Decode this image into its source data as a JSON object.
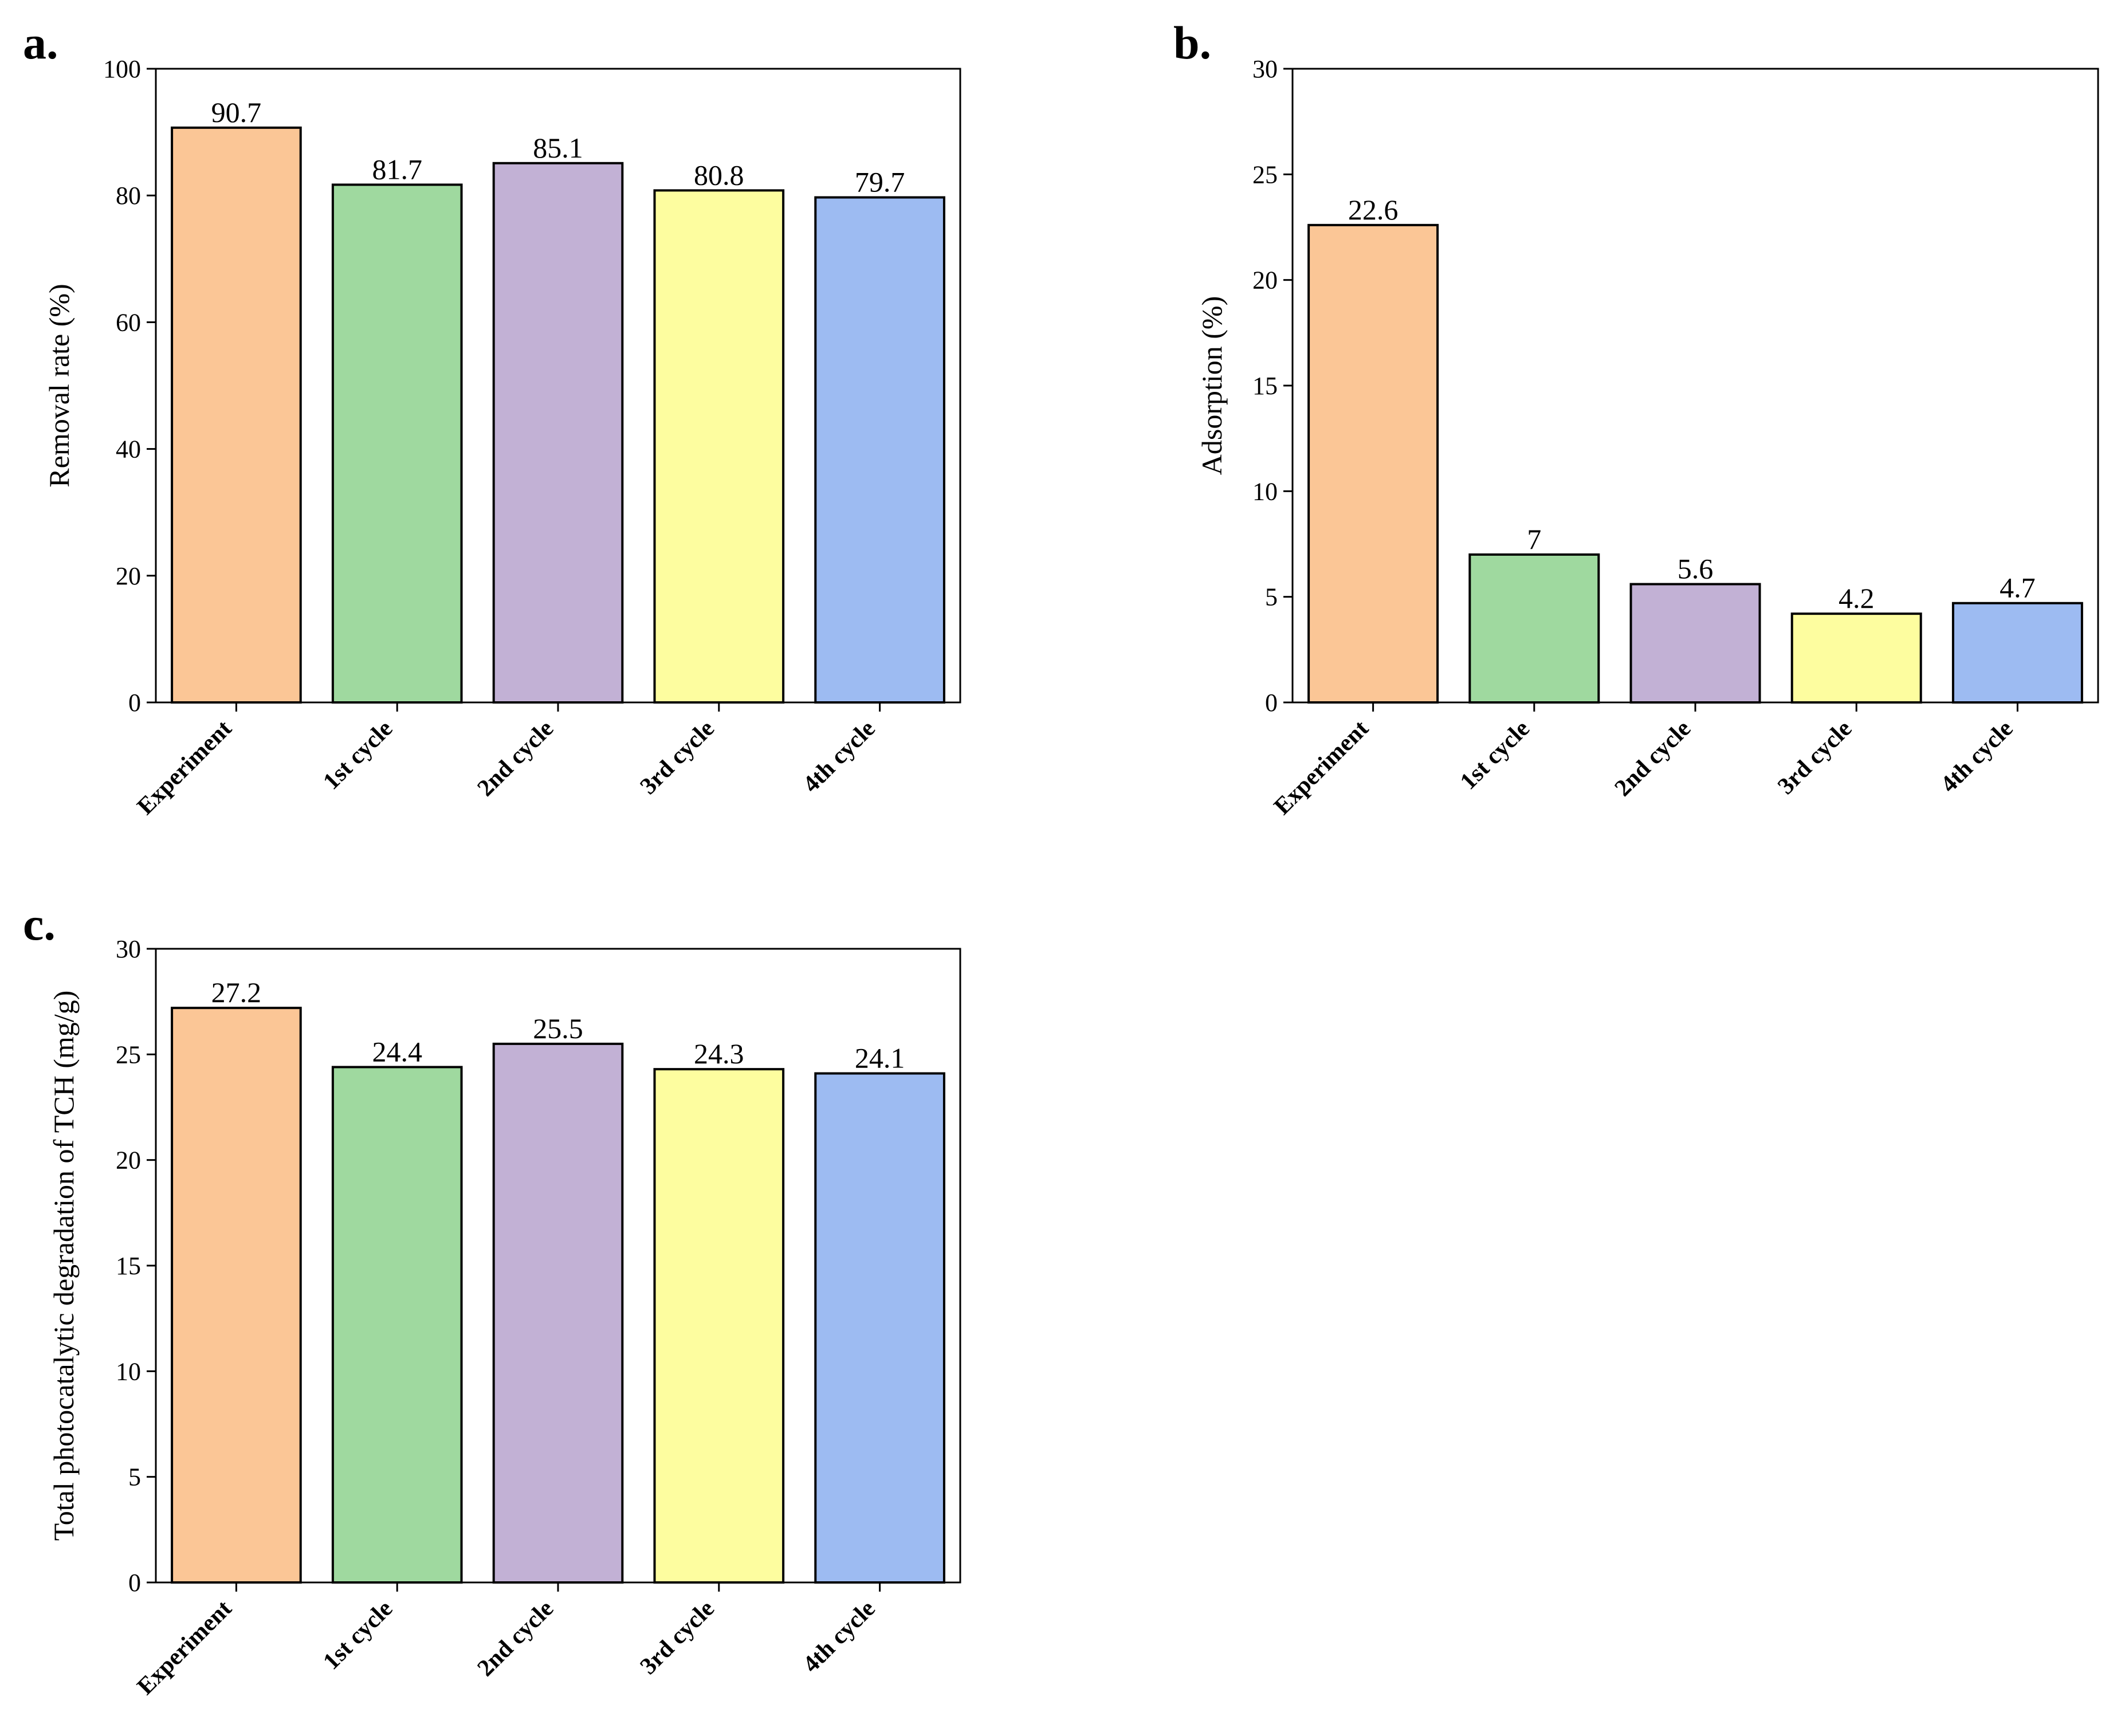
{
  "colors": {
    "series": [
      "#fbc696",
      "#9fd99f",
      "#c2b1d5",
      "#fdfd9f",
      "#9dbbf2"
    ],
    "bar_edge": "#000000",
    "axis": "#000000"
  },
  "chart_data": [
    {
      "panel_label": "a.",
      "type": "bar",
      "title": "",
      "categories": [
        "Experiment",
        "1st cycle",
        "2nd cycle",
        "3rd cycle",
        "4th cycle"
      ],
      "values": [
        90.7,
        81.7,
        85.1,
        80.8,
        79.7
      ],
      "data_labels": [
        "90.7",
        "81.7",
        "85.1",
        "80.8",
        "79.7"
      ],
      "xlabel": "",
      "ylabel": "Removal rate (%)",
      "ylim": [
        0,
        100
      ],
      "yticks": [
        0,
        20,
        40,
        60,
        80,
        100
      ],
      "grid": false,
      "legend": "none"
    },
    {
      "panel_label": "b.",
      "type": "bar",
      "title": "",
      "categories": [
        "Experiment",
        "1st cycle",
        "2nd cycle",
        "3rd cycle",
        "4th cycle"
      ],
      "values": [
        22.6,
        7,
        5.6,
        4.2,
        4.7
      ],
      "data_labels": [
        "22.6",
        "7",
        "5.6",
        "4.2",
        "4.7"
      ],
      "xlabel": "",
      "ylabel": "Adsorption (%)",
      "ylim": [
        0,
        30
      ],
      "yticks": [
        0,
        5,
        10,
        15,
        20,
        25,
        30
      ],
      "grid": false,
      "legend": "none"
    },
    {
      "panel_label": "c.",
      "type": "bar",
      "title": "",
      "categories": [
        "Experiment",
        "1st cycle",
        "2nd cycle",
        "3rd cycle",
        "4th cycle"
      ],
      "values": [
        27.2,
        24.4,
        25.5,
        24.3,
        24.1
      ],
      "data_labels": [
        "27.2",
        "24.4",
        "25.5",
        "24.3",
        "24.1"
      ],
      "xlabel": "",
      "ylabel": "Total photocatalytic degradation of TCH (mg/g)",
      "ylim": [
        0,
        30
      ],
      "yticks": [
        0,
        5,
        10,
        15,
        20,
        25,
        30
      ],
      "grid": false,
      "legend": "none"
    }
  ]
}
